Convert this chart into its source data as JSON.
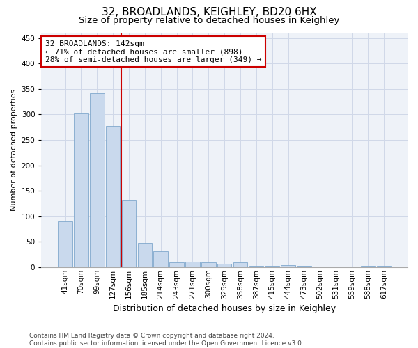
{
  "title": "32, BROADLANDS, KEIGHLEY, BD20 6HX",
  "subtitle": "Size of property relative to detached houses in Keighley",
  "xlabel": "Distribution of detached houses by size in Keighley",
  "ylabel": "Number of detached properties",
  "categories": [
    "41sqm",
    "70sqm",
    "99sqm",
    "127sqm",
    "156sqm",
    "185sqm",
    "214sqm",
    "243sqm",
    "271sqm",
    "300sqm",
    "329sqm",
    "358sqm",
    "387sqm",
    "415sqm",
    "444sqm",
    "473sqm",
    "502sqm",
    "531sqm",
    "559sqm",
    "588sqm",
    "617sqm"
  ],
  "values": [
    90,
    302,
    341,
    278,
    131,
    47,
    31,
    9,
    11,
    9,
    7,
    9,
    3,
    2,
    4,
    2,
    1,
    1,
    0,
    2,
    2
  ],
  "bar_color": "#c9d9ed",
  "bar_edge_color": "#7fa8cc",
  "marker_line_color": "#cc0000",
  "annotation_text": "32 BROADLANDS: 142sqm\n← 71% of detached houses are smaller (898)\n28% of semi-detached houses are larger (349) →",
  "annotation_box_color": "#ffffff",
  "annotation_box_edge_color": "#cc0000",
  "ylim": [
    0,
    460
  ],
  "yticks": [
    0,
    50,
    100,
    150,
    200,
    250,
    300,
    350,
    400,
    450
  ],
  "grid_color": "#d0d8e8",
  "bg_color": "#eef2f8",
  "footer": "Contains HM Land Registry data © Crown copyright and database right 2024.\nContains public sector information licensed under the Open Government Licence v3.0.",
  "title_fontsize": 11,
  "subtitle_fontsize": 9.5,
  "xlabel_fontsize": 9,
  "ylabel_fontsize": 8,
  "tick_fontsize": 7.5,
  "annotation_fontsize": 8,
  "footer_fontsize": 6.5
}
